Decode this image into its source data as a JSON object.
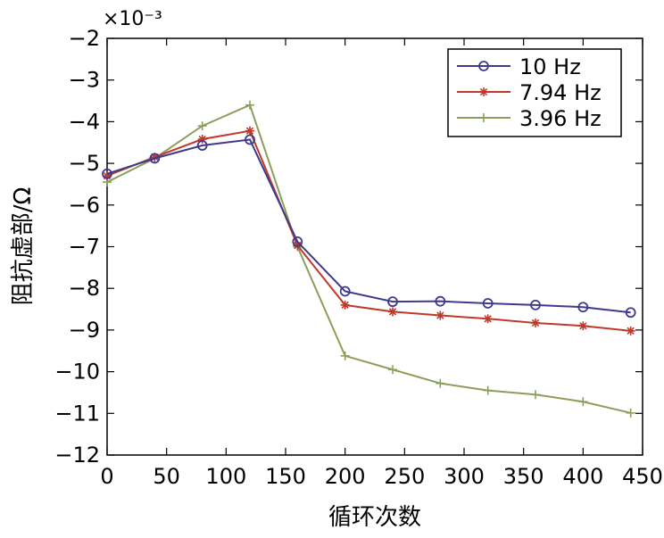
{
  "chart_data": {
    "type": "line",
    "xlabel": "循环次数",
    "ylabel": "阻抗虚部/Ω",
    "y_multiplier": "×10⁻³",
    "xlim": [
      0,
      450
    ],
    "ylim": [
      -12,
      -2
    ],
    "x_ticks": [
      "0",
      "50",
      "100",
      "150",
      "200",
      "250",
      "300",
      "350",
      "400",
      "450"
    ],
    "y_ticks": [
      "−2",
      "−3",
      "−4",
      "−5",
      "−6",
      "−7",
      "−8",
      "−9",
      "−10",
      "−11",
      "−12"
    ],
    "x": [
      0,
      40,
      80,
      120,
      160,
      200,
      240,
      280,
      320,
      360,
      400,
      440
    ],
    "legend_position": "top-right",
    "grid": false,
    "series": [
      {
        "name": "10 Hz",
        "marker": "circle",
        "color": "#3e3a8c",
        "values": [
          -5.25,
          -4.88,
          -4.57,
          -4.43,
          -6.88,
          -8.07,
          -8.32,
          -8.31,
          -8.36,
          -8.4,
          -8.45,
          -8.58
        ]
      },
      {
        "name": "7.94 Hz",
        "marker": "asterisk",
        "color": "#c0392b",
        "values": [
          -5.3,
          -4.85,
          -4.42,
          -4.22,
          -6.97,
          -8.4,
          -8.56,
          -8.65,
          -8.73,
          -8.83,
          -8.9,
          -9.02
        ]
      },
      {
        "name": "3.96 Hz",
        "marker": "plus",
        "color": "#8aa05a",
        "values": [
          -5.45,
          -4.88,
          -4.1,
          -3.6,
          -7.0,
          -9.62,
          -9.95,
          -10.28,
          -10.45,
          -10.55,
          -10.72,
          -10.99
        ]
      }
    ]
  }
}
